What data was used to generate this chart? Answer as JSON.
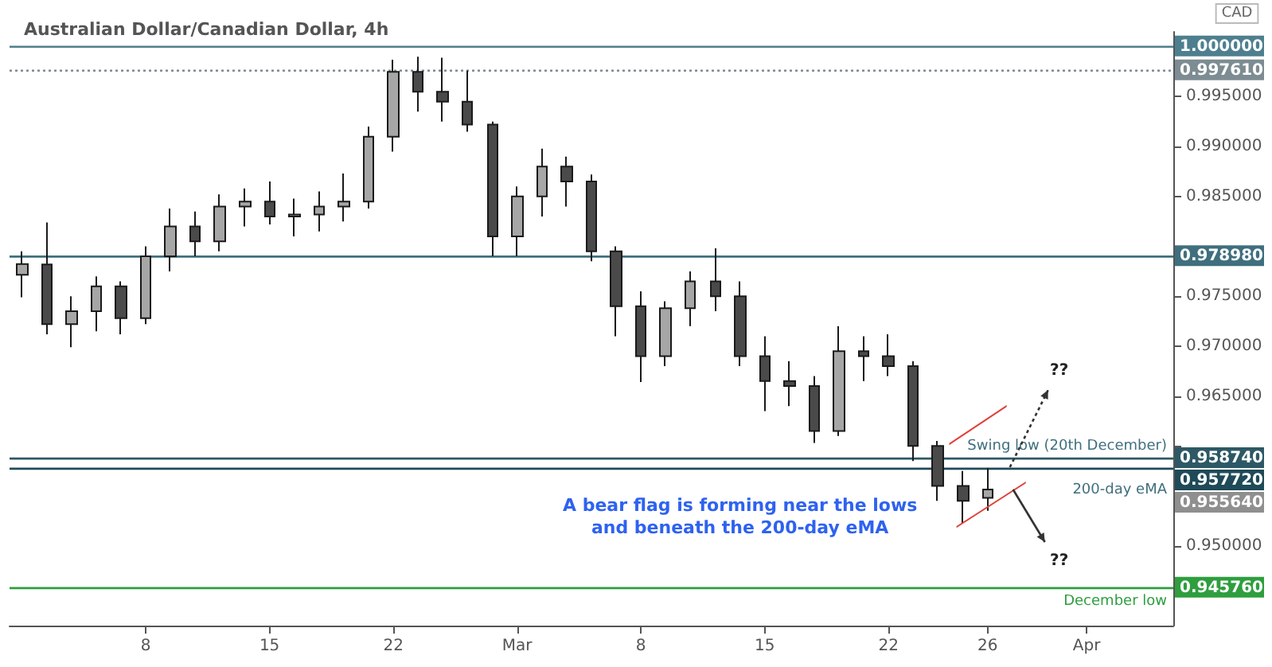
{
  "chart_data": {
    "type": "candlestick",
    "title": "Australian Dollar/Canadian Dollar, 4h",
    "categories": [
      null,
      null,
      null,
      null,
      null,
      "8",
      null,
      null,
      null,
      null,
      "15",
      null,
      null,
      null,
      null,
      "22",
      null,
      null,
      null,
      null,
      "Mar",
      null,
      null,
      null,
      null,
      "8",
      null,
      null,
      null,
      null,
      "15",
      null,
      null,
      null,
      null,
      "22",
      null,
      null,
      null,
      "26",
      null,
      null,
      null,
      "Apr",
      null,
      null,
      null
    ],
    "ohlc": [
      [
        0.97715,
        0.9795,
        0.9749,
        0.97823
      ],
      [
        0.9782,
        0.9824,
        0.9712,
        0.9722
      ],
      [
        0.9722,
        0.975,
        0.9699,
        0.9735
      ],
      [
        0.9735,
        0.977,
        0.9715,
        0.976
      ],
      [
        0.976,
        0.9765,
        0.9712,
        0.9728
      ],
      [
        0.9728,
        0.98,
        0.9722,
        0.979
      ],
      [
        0.979,
        0.9838,
        0.9775,
        0.982
      ],
      [
        0.982,
        0.9835,
        0.979,
        0.9805
      ],
      [
        0.9805,
        0.9852,
        0.9795,
        0.984
      ],
      [
        0.984,
        0.9858,
        0.982,
        0.9845
      ],
      [
        0.9845,
        0.9865,
        0.9822,
        0.983
      ],
      [
        0.983,
        0.9848,
        0.981,
        0.9832
      ],
      [
        0.9832,
        0.9855,
        0.9815,
        0.984
      ],
      [
        0.984,
        0.9873,
        0.9825,
        0.9845
      ],
      [
        0.9845,
        0.992,
        0.9838,
        0.991
      ],
      [
        0.991,
        0.9987,
        0.9895,
        0.9975
      ],
      [
        0.9975,
        0.999,
        0.9935,
        0.9955
      ],
      [
        0.9955,
        0.9989,
        0.9925,
        0.9945
      ],
      [
        0.9945,
        0.99761,
        0.9915,
        0.9922
      ],
      [
        0.9922,
        0.9925,
        0.979,
        0.981
      ],
      [
        0.981,
        0.986,
        0.979,
        0.985
      ],
      [
        0.985,
        0.9898,
        0.983,
        0.988
      ],
      [
        0.988,
        0.989,
        0.984,
        0.9865
      ],
      [
        0.9865,
        0.9872,
        0.9785,
        0.9795
      ],
      [
        0.9795,
        0.98,
        0.971,
        0.974
      ],
      [
        0.974,
        0.9755,
        0.9664,
        0.969
      ],
      [
        0.969,
        0.9745,
        0.968,
        0.9738
      ],
      [
        0.9738,
        0.9775,
        0.972,
        0.9765
      ],
      [
        0.9765,
        0.9798,
        0.9735,
        0.975
      ],
      [
        0.975,
        0.9765,
        0.968,
        0.969
      ],
      [
        0.969,
        0.971,
        0.9635,
        0.9665
      ],
      [
        0.9665,
        0.9685,
        0.964,
        0.966
      ],
      [
        0.966,
        0.967,
        0.9603,
        0.9615
      ],
      [
        0.9615,
        0.972,
        0.961,
        0.9695
      ],
      [
        0.9695,
        0.971,
        0.9665,
        0.969
      ],
      [
        0.969,
        0.9712,
        0.967,
        0.968
      ],
      [
        0.968,
        0.9685,
        0.9585,
        0.96
      ],
      [
        0.96,
        0.9605,
        0.9545,
        0.956
      ],
      [
        0.956,
        0.9575,
        0.9522,
        0.9545
      ],
      [
        0.9548,
        0.9578,
        0.9535,
        0.95564
      ],
      null,
      null,
      null,
      null,
      null,
      null,
      null
    ],
    "ylim": [
      0.942,
      1.0015
    ],
    "yticks": [
      {
        "value": 0.945,
        "label": null
      },
      {
        "value": 0.95,
        "label": "0.950000"
      },
      {
        "value": 0.955,
        "label": null
      },
      {
        "value": 0.96,
        "label": null
      },
      {
        "value": 0.965,
        "label": "0.965000"
      },
      {
        "value": 0.97,
        "label": "0.970000"
      },
      {
        "value": 0.975,
        "label": "0.975000"
      },
      {
        "value": 0.98,
        "label": null
      },
      {
        "value": 0.985,
        "label": "0.985000"
      },
      {
        "value": 0.99,
        "label": "0.990000"
      },
      {
        "value": 0.995,
        "label": "0.995000"
      }
    ],
    "grid": false,
    "ref_lines": [
      {
        "axis": "y",
        "value": 1.0,
        "label": "1.000000",
        "color": "#4e7f8e",
        "line_style": "solid"
      },
      {
        "axis": "y",
        "value": 0.99761,
        "label": "0.997610",
        "color": "#7d8c92",
        "line_style": "dotted"
      },
      {
        "axis": "y",
        "value": 0.97898,
        "label": "0.978980",
        "color": "#3f6f7e",
        "line_style": "solid"
      },
      {
        "axis": "y",
        "value": 0.95874,
        "label": "0.958740",
        "color": "#2d5865",
        "line_style": "solid"
      },
      {
        "axis": "y",
        "value": 0.95772,
        "label": "0.957720",
        "color": "#1f4a57",
        "line_style": "solid"
      },
      {
        "axis": "y",
        "value": 0.94576,
        "label": "0.945760",
        "color": "#2e9e3e",
        "line_style": "solid"
      }
    ],
    "annotations": [
      "Swing low (20th December)",
      "200-day eMA",
      "December low",
      "A bear flag is forming near the lows\nand beneath the 200-day eMA",
      "??",
      "??",
      "0.955640",
      "CAD"
    ]
  }
}
